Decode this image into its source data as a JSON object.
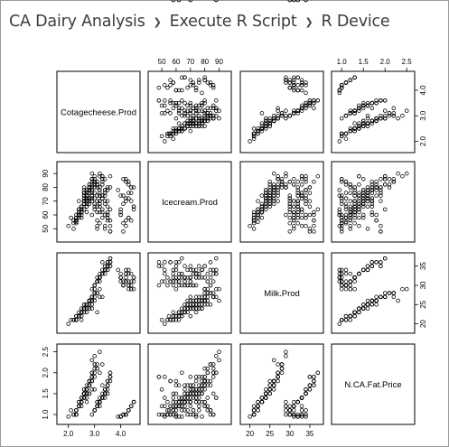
{
  "breadcrumb": {
    "items": [
      "CA Dairy Analysis",
      "Execute R Script",
      "R Device"
    ],
    "separator": "›"
  },
  "chart_data": {
    "type": "scatter",
    "kind": "scatterplot-matrix",
    "title": "",
    "variables": [
      "Cotagecheese.Prod",
      "Icecream.Prod",
      "Milk.Prod",
      "N.CA.Fat.Price"
    ],
    "ranges": [
      [
        1.7,
        4.6
      ],
      [
        43,
        96
      ],
      [
        18.5,
        37.5
      ],
      [
        0.85,
        2.6
      ]
    ],
    "ticks": [
      [
        2.0,
        3.0,
        4.0
      ],
      [
        50,
        60,
        70,
        80,
        90
      ],
      [
        20,
        25,
        30,
        35
      ],
      [
        1.0,
        1.5,
        2.0,
        2.5
      ]
    ],
    "tick_labels": [
      [
        "2.0",
        "3.0",
        "4.0"
      ],
      [
        "50",
        "60",
        "70",
        "80",
        "90"
      ],
      [
        "20",
        "25",
        "30",
        "35"
      ],
      [
        "1.0",
        "1.5",
        "2.0",
        "2.5"
      ]
    ],
    "axis_layout": {
      "top": [
        "",
        "Icecream.Prod",
        "",
        "N.CA.Fat.Price"
      ],
      "bottom": [
        "Cotagecheese.Prod",
        "",
        "Milk.Prod",
        ""
      ],
      "left": [
        "",
        "Icecream.Prod",
        "",
        "N.CA.Fat.Price"
      ],
      "right": [
        "Cotagecheese.Prod",
        "",
        "Milk.Prod",
        ""
      ]
    },
    "grid": false,
    "marker": "open-circle",
    "colors": {
      "points": "#000000",
      "frame": "#000000",
      "text": "#000000"
    },
    "n_points": 228,
    "points": {
      "Cotagecheese.Prod": [
        3.1,
        2.3,
        2.8,
        2.5,
        2.9,
        2.2,
        2.0,
        2.4,
        3.0,
        2.6,
        2.1,
        2.7,
        2.8,
        3.2,
        2.9,
        2.4,
        2.5,
        2.6,
        2.3,
        2.7,
        3.3,
        2.4,
        2.6,
        2.2,
        2.9,
        2.7,
        2.5,
        2.8,
        3.0,
        2.4,
        2.6,
        2.3,
        2.9,
        2.5,
        2.7,
        3.1,
        2.6,
        2.8,
        2.4,
        2.5,
        2.7,
        2.9,
        2.6,
        2.3,
        2.8,
        2.5,
        3.0,
        2.7,
        2.4,
        2.6,
        2.9,
        2.2,
        2.8,
        2.5,
        2.7,
        2.6,
        3.0,
        2.4,
        2.8,
        2.3,
        2.6,
        2.9,
        2.5,
        2.7,
        2.4,
        2.8,
        2.6,
        3.1,
        2.5,
        2.7,
        2.3,
        2.9,
        2.6,
        2.8,
        2.4,
        2.5,
        2.7,
        3.0,
        2.6,
        2.8,
        2.4,
        2.5,
        2.9,
        2.7,
        2.3,
        2.6,
        2.8,
        2.5,
        3.2,
        2.7,
        2.4,
        2.6,
        2.9,
        2.5,
        2.8,
        2.7,
        2.4,
        2.6,
        3.0,
        2.5,
        2.8,
        2.3,
        2.7,
        2.6,
        2.9,
        2.4,
        2.5,
        2.8,
        2.7,
        2.6,
        3.1,
        2.4,
        2.9,
        2.5,
        2.7,
        2.6,
        2.8,
        2.3,
        2.5,
        2.7,
        3.0,
        2.6,
        2.4,
        2.8,
        2.5,
        2.9,
        2.7,
        2.6,
        2.4,
        2.8,
        3.4,
        3.5,
        3.2,
        3.6,
        3.1,
        3.3,
        3.5,
        3.0,
        3.2,
        3.4,
        3.6,
        3.1,
        3.3,
        3.2,
        3.5,
        3.0,
        3.4,
        3.3,
        3.1,
        3.2,
        3.6,
        3.4,
        2.9,
        3.3,
        3.5,
        3.1,
        3.2,
        3.4,
        3.0,
        3.3,
        3.6,
        3.2,
        3.5,
        3.1,
        3.4,
        3.3,
        3.0,
        3.2,
        3.5,
        3.4,
        3.6,
        3.1,
        3.3,
        3.2,
        3.4,
        3.5,
        3.0,
        3.3,
        3.1,
        3.6,
        3.2,
        3.4,
        3.5,
        3.3,
        3.1,
        3.2,
        3.4,
        3.0,
        3.6,
        3.3,
        3.2,
        3.5,
        4.1,
        4.3,
        4.0,
        4.4,
        4.2,
        4.5,
        4.1,
        4.3,
        4.0,
        4.2,
        4.4,
        4.1,
        4.5,
        4.3,
        4.2,
        3.9,
        4.4,
        4.0,
        4.2,
        4.3,
        4.1,
        4.5,
        4.2,
        4.4,
        4.0,
        4.3,
        4.1,
        4.2,
        4.4,
        4.3,
        4.0,
        4.5
      ],
      "Icecream.Prod": [
        74,
        55,
        78,
        62,
        84,
        50,
        52,
        70,
        76,
        68,
        58,
        66,
        82,
        88,
        72,
        60,
        64,
        74,
        54,
        70,
        86,
        62,
        80,
        56,
        90,
        78,
        60,
        72,
        80,
        64,
        76,
        58,
        74,
        66,
        62,
        82,
        70,
        76,
        64,
        58,
        68,
        86,
        72,
        56,
        70,
        66,
        84,
        74,
        60,
        78,
        70,
        54,
        80,
        62,
        68,
        76,
        88,
        64,
        72,
        60,
        74,
        82,
        66,
        70,
        58,
        78,
        64,
        80,
        62,
        76,
        56,
        86,
        72,
        68,
        60,
        64,
        74,
        84,
        70,
        80,
        62,
        66,
        76,
        72,
        58,
        68,
        82,
        62,
        90,
        74,
        60,
        70,
        78,
        64,
        72,
        66,
        60,
        76,
        86,
        62,
        80,
        56,
        72,
        68,
        74,
        62,
        64,
        78,
        70,
        76,
        84,
        60,
        80,
        66,
        72,
        70,
        78,
        58,
        62,
        74,
        82,
        68,
        62,
        80,
        66,
        86,
        72,
        70,
        60,
        78,
        52,
        78,
        62,
        48,
        70,
        84,
        58,
        66,
        74,
        50,
        88,
        62,
        72,
        80,
        56,
        68,
        76,
        64,
        82,
        70,
        48,
        86,
        60,
        74,
        66,
        52,
        78,
        70,
        84,
        62,
        56,
        74,
        80,
        66,
        60,
        88,
        72,
        54,
        70,
        78,
        64,
        82,
        58,
        76,
        68,
        60,
        84,
        72,
        50,
        80,
        66,
        74,
        62,
        88,
        56,
        70,
        78,
        64,
        52,
        82,
        68,
        60,
        86,
        58,
        74,
        80,
        72,
        66,
        48,
        84,
        60,
        70,
        76,
        54,
        64,
        82,
        56,
        78,
        70,
        62,
        86,
        58,
        74,
        66,
        52,
        80,
        60,
        76,
        68,
        84,
        56,
        72,
        64,
        80,
        58,
        70,
        62,
        88
      ],
      "Milk.Prod": [
        23,
        22,
        24,
        21,
        25,
        21,
        20,
        22,
        26,
        23,
        21,
        24,
        25,
        27,
        24,
        22,
        23,
        24,
        21,
        24,
        27,
        22,
        25,
        21,
        26,
        25,
        22,
        24,
        27,
        23,
        25,
        22,
        26,
        24,
        23,
        28,
        24,
        26,
        22,
        23,
        25,
        27,
        24,
        21,
        26,
        23,
        28,
        25,
        22,
        24,
        27,
        21,
        26,
        23,
        25,
        24,
        29,
        22,
        26,
        21,
        24,
        27,
        23,
        25,
        22,
        26,
        24,
        28,
        23,
        25,
        21,
        27,
        24,
        26,
        22,
        23,
        25,
        28,
        24,
        26,
        22,
        23,
        27,
        25,
        21,
        24,
        26,
        23,
        29,
        25,
        22,
        24,
        27,
        23,
        26,
        25,
        22,
        24,
        28,
        23,
        26,
        21,
        25,
        24,
        27,
        22,
        23,
        26,
        25,
        24,
        28,
        22,
        27,
        23,
        25,
        24,
        26,
        21,
        23,
        25,
        28,
        24,
        22,
        26,
        23,
        27,
        25,
        24,
        22,
        26,
        33,
        34,
        31,
        35,
        32,
        36,
        34,
        30,
        33,
        35,
        37,
        31,
        34,
        32,
        36,
        30,
        35,
        33,
        31,
        32,
        36,
        34,
        29,
        33,
        35,
        31,
        32,
        34,
        30,
        33,
        36,
        32,
        35,
        31,
        34,
        33,
        30,
        32,
        35,
        34,
        37,
        31,
        33,
        32,
        34,
        36,
        30,
        33,
        31,
        35,
        32,
        34,
        36,
        33,
        31,
        32,
        34,
        30,
        36,
        33,
        32,
        35,
        31,
        30,
        32,
        29,
        33,
        31,
        30,
        34,
        32,
        31,
        33,
        30,
        32,
        29,
        31,
        34,
        30,
        32,
        33,
        31,
        30,
        32,
        34,
        29,
        31,
        33,
        30,
        32,
        31,
        30,
        33,
        29,
        32,
        31,
        30,
        34
      ],
      "N.CA.Fat.Price": [
        1.3,
        1.1,
        1.5,
        1.2,
        1.8,
        1.0,
        0.95,
        1.3,
        1.6,
        1.4,
        1.1,
        1.5,
        1.7,
        2.0,
        1.6,
        1.2,
        1.4,
        1.5,
        1.1,
        1.4,
        2.2,
        1.2,
        1.6,
        1.0,
        2.3,
        1.7,
        1.3,
        1.5,
        1.9,
        1.3,
        1.6,
        1.1,
        1.8,
        1.4,
        1.3,
        2.1,
        1.5,
        1.7,
        1.2,
        1.3,
        1.5,
        2.0,
        1.5,
        1.0,
        1.7,
        1.3,
        2.2,
        1.6,
        1.2,
        1.5,
        1.9,
        1.0,
        1.8,
        1.3,
        1.5,
        1.4,
        2.4,
        1.2,
        1.7,
        1.1,
        1.5,
        2.0,
        1.4,
        1.6,
        1.2,
        1.8,
        1.4,
        2.1,
        1.3,
        1.6,
        1.0,
        2.0,
        1.5,
        1.7,
        1.2,
        1.3,
        1.6,
        2.2,
        1.5,
        1.7,
        1.2,
        1.3,
        1.9,
        1.6,
        1.1,
        1.4,
        1.8,
        1.3,
        2.5,
        1.6,
        1.2,
        1.5,
        1.9,
        1.3,
        1.7,
        1.6,
        1.2,
        1.5,
        2.1,
        1.3,
        1.8,
        1.0,
        1.6,
        1.4,
        1.9,
        1.2,
        1.3,
        1.7,
        1.6,
        1.5,
        2.2,
        1.2,
        1.8,
        1.3,
        1.6,
        1.5,
        1.7,
        1.0,
        1.3,
        1.6,
        2.0,
        1.5,
        1.2,
        1.8,
        1.3,
        1.9,
        1.6,
        1.5,
        1.2,
        1.7,
        1.4,
        1.6,
        1.2,
        1.9,
        1.3,
        1.7,
        1.5,
        1.1,
        1.4,
        1.6,
        2.0,
        1.2,
        1.5,
        1.3,
        1.8,
        1.1,
        1.6,
        1.4,
        1.2,
        1.3,
        1.9,
        1.5,
        1.0,
        1.4,
        1.7,
        1.2,
        1.3,
        1.6,
        1.1,
        1.4,
        1.8,
        1.3,
        1.7,
        1.2,
        1.5,
        1.4,
        1.1,
        1.3,
        1.7,
        1.5,
        2.0,
        1.2,
        1.4,
        1.3,
        1.5,
        1.8,
        1.1,
        1.4,
        1.2,
        1.9,
        1.3,
        1.5,
        1.7,
        1.4,
        1.2,
        1.3,
        1.6,
        1.1,
        1.9,
        1.4,
        1.3,
        1.7,
        1.0,
        1.1,
        0.95,
        1.2,
        1.0,
        1.3,
        1.0,
        1.1,
        0.95,
        1.0,
        1.2,
        1.0,
        1.3,
        1.1,
        1.0,
        0.95,
        1.2,
        0.95,
        1.0,
        1.1,
        1.0,
        1.3,
        1.0,
        1.2,
        0.95,
        1.1,
        1.0,
        1.0,
        1.2,
        1.1,
        0.95,
        1.3
      ]
    }
  }
}
